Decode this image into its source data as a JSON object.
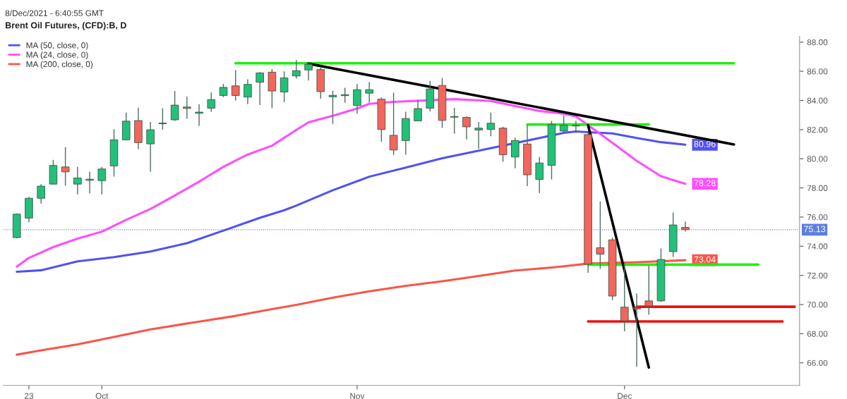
{
  "chart_data": {
    "type": "candlestick",
    "title": "Brent Oil Futures, (CFD):B, D",
    "annotations": [
      "8/Dec/2021 - 6:40:55 GMT"
    ],
    "categories": [
      null,
      "23",
      null,
      null,
      null,
      null,
      null,
      "Oct",
      null,
      null,
      null,
      null,
      null,
      null,
      null,
      null,
      null,
      null,
      null,
      null,
      null,
      null,
      null,
      null,
      null,
      null,
      null,
      null,
      "Nov",
      null,
      null,
      null,
      null,
      null,
      null,
      null,
      null,
      null,
      null,
      null,
      null,
      null,
      null,
      null,
      null,
      null,
      null,
      null,
      null,
      null,
      "Dec",
      null,
      null,
      null,
      null,
      null,
      null,
      null,
      null,
      null,
      null,
      null,
      null,
      null,
      null
    ],
    "ohlc": [
      [
        74.59,
        76.25,
        74.55,
        76.2
      ],
      [
        75.93,
        77.39,
        75.65,
        77.29
      ],
      [
        77.29,
        78.26,
        76.93,
        78.12
      ],
      [
        78.26,
        79.93,
        78.26,
        79.54
      ],
      [
        79.44,
        80.8,
        78.15,
        79.1
      ],
      [
        78.26,
        79.44,
        77.56,
        78.68
      ],
      [
        78.52,
        79.12,
        77.63,
        78.6
      ],
      [
        78.5,
        79.44,
        77.56,
        79.3
      ],
      [
        79.51,
        82.03,
        78.78,
        81.3
      ],
      [
        81.3,
        83.16,
        81.25,
        82.58
      ],
      [
        82.62,
        83.5,
        80.66,
        81.11
      ],
      [
        81.02,
        82.53,
        79.12,
        81.99
      ],
      [
        82.4,
        83.47,
        81.99,
        82.45
      ],
      [
        82.67,
        84.65,
        82.6,
        83.68
      ],
      [
        83.55,
        84.27,
        82.74,
        83.45
      ],
      [
        83.12,
        83.75,
        82.26,
        83.2
      ],
      [
        83.47,
        84.55,
        83.23,
        84.06
      ],
      [
        84.34,
        85.14,
        84.23,
        84.9
      ],
      [
        85.0,
        86.08,
        83.99,
        84.34
      ],
      [
        84.23,
        85.45,
        83.75,
        85.1
      ],
      [
        85.25,
        85.95,
        83.68,
        85.89
      ],
      [
        85.94,
        86.15,
        83.47,
        84.65
      ],
      [
        84.58,
        85.99,
        83.88,
        85.55
      ],
      [
        85.68,
        86.77,
        85.5,
        86.04
      ],
      [
        86.09,
        86.55,
        85.36,
        86.48
      ],
      [
        86.12,
        86.25,
        84.12,
        84.61
      ],
      [
        84.25,
        84.66,
        82.39,
        84.35
      ],
      [
        84.33,
        84.87,
        83.85,
        84.4
      ],
      [
        83.65,
        85.14,
        83.09,
        84.74
      ],
      [
        84.5,
        85.27,
        83.85,
        84.74
      ],
      [
        84.09,
        84.2,
        81.17,
        82.01
      ],
      [
        81.61,
        84.53,
        80.25,
        80.6
      ],
      [
        81.25,
        83.23,
        80.28,
        82.76
      ],
      [
        82.6,
        84.04,
        82.6,
        83.44
      ],
      [
        83.47,
        85.34,
        83.25,
        84.79
      ],
      [
        85.03,
        85.55,
        82.11,
        82.63
      ],
      [
        82.85,
        83.49,
        81.71,
        82.9
      ],
      [
        82.84,
        82.9,
        81.33,
        82.19
      ],
      [
        81.97,
        82.52,
        80.69,
        82.1
      ],
      [
        82.01,
        83.17,
        81.54,
        82.44
      ],
      [
        82.1,
        82.2,
        79.79,
        80.28
      ],
      [
        80.12,
        81.45,
        79.34,
        81.25
      ],
      [
        81.01,
        82.3,
        78.12,
        78.9
      ],
      [
        78.58,
        80.12,
        77.64,
        79.71
      ],
      [
        79.55,
        82.6,
        78.58,
        82.34
      ],
      [
        81.9,
        82.99,
        81.85,
        82.31
      ],
      [
        82.25,
        82.6,
        81.77,
        82.28
      ],
      [
        81.66,
        81.8,
        72.17,
        72.77
      ],
      [
        73.9,
        77.07,
        72.44,
        73.46
      ],
      [
        74.44,
        74.6,
        70.3,
        70.58
      ],
      [
        69.82,
        72.87,
        68.16,
        68.88
      ],
      [
        69.78,
        70.76,
        65.73,
        69.7
      ],
      [
        70.25,
        72.66,
        69.3,
        69.9
      ],
      [
        70.25,
        73.84,
        70.2,
        73.09
      ],
      [
        73.63,
        76.31,
        73.26,
        75.46
      ],
      [
        75.29,
        75.69,
        75.01,
        75.14
      ],
      null,
      null,
      null,
      null,
      null,
      null,
      null,
      null,
      null
    ],
    "colors": [
      "#22c17a",
      "#22c17a",
      "#22c17a",
      "#22c17a",
      "#f4665c",
      "#22c17a",
      "#22c17a",
      "#22c17a",
      "#22c17a",
      "#22c17a",
      "#f4665c",
      "#22c17a",
      "#22c17a",
      "#22c17a",
      "#f4665c",
      "#22c17a",
      "#22c17a",
      "#22c17a",
      "#f4665c",
      "#22c17a",
      "#22c17a",
      "#f4665c",
      "#22c17a",
      "#22c17a",
      "#22c17a",
      "#f4665c",
      "#22c17a",
      "#22c17a",
      "#22c17a",
      "#22c17a",
      "#f4665c",
      "#f4665c",
      "#22c17a",
      "#22c17a",
      "#22c17a",
      "#f4665c",
      "#22c17a",
      "#f4665c",
      "#22c17a",
      "#22c17a",
      "#f4665c",
      "#22c17a",
      "#f4665c",
      "#22c17a",
      "#22c17a",
      "#22c17a",
      "#22c17a",
      "#f4665c",
      "#f4665c",
      "#f4665c",
      "#f4665c",
      "#f4665c",
      "#f4665c",
      "#22c17a",
      "#22c17a",
      "#f4665c",
      null,
      null,
      null,
      null,
      null,
      null,
      null,
      null,
      null
    ],
    "series": [
      {
        "name": "MA (50, close, 0)",
        "type": "line",
        "color": "#5252f0",
        "values": [
          72.25,
          null,
          72.35,
          null,
          null,
          72.96,
          null,
          null,
          73.25,
          null,
          null,
          73.64,
          null,
          null,
          74.21,
          null,
          null,
          75.07,
          null,
          null,
          75.95,
          null,
          76.47,
          76.79,
          null,
          null,
          77.84,
          null,
          null,
          78.77,
          null,
          null,
          79.39,
          null,
          null,
          80.03,
          null,
          null,
          80.55,
          null,
          null,
          null,
          null,
          81.42,
          null,
          81.77,
          81.87,
          81.82,
          null,
          81.74,
          null,
          81.42,
          null,
          81.14,
          null,
          80.96,
          null,
          null,
          null,
          null,
          null,
          null,
          null,
          null,
          null
        ],
        "value_labels": [
          null,
          null,
          null,
          null,
          null,
          null,
          null,
          null,
          null,
          null,
          null,
          null,
          null,
          null,
          null,
          null,
          null,
          null,
          null,
          null,
          null,
          null,
          null,
          null,
          null,
          null,
          null,
          null,
          null,
          null,
          null,
          null,
          null,
          null,
          null,
          null,
          null,
          null,
          null,
          null,
          null,
          null,
          null,
          null,
          null,
          null,
          null,
          null,
          null,
          null,
          null,
          null,
          null,
          null,
          null,
          "80.96",
          null,
          null,
          null,
          null,
          null,
          null,
          null,
          null,
          null
        ]
      },
      {
        "name": "MA (24, close, 0)",
        "type": "line",
        "color": "#ff4dff",
        "values": [
          72.6,
          73.2,
          null,
          73.94,
          null,
          74.52,
          null,
          75.0,
          null,
          75.81,
          null,
          76.56,
          null,
          77.48,
          null,
          78.43,
          null,
          79.45,
          null,
          80.29,
          null,
          80.9,
          null,
          81.98,
          82.5,
          null,
          82.95,
          null,
          83.44,
          83.77,
          null,
          83.9,
          null,
          null,
          null,
          null,
          84.09,
          null,
          null,
          83.96,
          null,
          83.61,
          null,
          83.28,
          null,
          83.09,
          82.9,
          82.31,
          null,
          81.1,
          null,
          79.85,
          null,
          78.8,
          null,
          78.28,
          null,
          null,
          null,
          null,
          null,
          null,
          null,
          null,
          null
        ],
        "value_labels": [
          null,
          null,
          null,
          null,
          null,
          null,
          null,
          null,
          null,
          null,
          null,
          null,
          null,
          null,
          null,
          null,
          null,
          null,
          null,
          null,
          null,
          null,
          null,
          null,
          null,
          null,
          null,
          null,
          null,
          null,
          null,
          null,
          null,
          null,
          null,
          null,
          null,
          null,
          null,
          null,
          null,
          null,
          null,
          null,
          null,
          null,
          null,
          null,
          null,
          null,
          null,
          null,
          null,
          null,
          null,
          "78.28",
          null,
          null,
          null,
          null,
          null,
          null,
          null,
          null,
          null
        ]
      },
      {
        "name": "MA (200, close, 0)",
        "type": "line",
        "color": "#f8564a",
        "values": [
          66.56,
          null,
          66.86,
          null,
          null,
          67.27,
          null,
          null,
          67.78,
          null,
          null,
          68.3,
          null,
          null,
          null,
          68.83,
          null,
          null,
          69.22,
          null,
          null,
          69.69,
          null,
          69.98,
          null,
          null,
          70.47,
          null,
          null,
          70.91,
          null,
          null,
          71.28,
          null,
          null,
          71.6,
          null,
          null,
          71.96,
          null,
          null,
          72.33,
          null,
          null,
          72.54,
          72.62,
          null,
          72.81,
          null,
          null,
          null,
          72.9,
          null,
          null,
          null,
          73.04,
          null,
          null,
          null,
          null,
          null,
          null,
          null,
          null,
          null
        ],
        "value_labels": [
          null,
          null,
          null,
          null,
          null,
          null,
          null,
          null,
          null,
          null,
          null,
          null,
          null,
          null,
          null,
          null,
          null,
          null,
          null,
          null,
          null,
          null,
          null,
          null,
          null,
          null,
          null,
          null,
          null,
          null,
          null,
          null,
          null,
          null,
          null,
          null,
          null,
          null,
          null,
          null,
          null,
          null,
          null,
          null,
          null,
          null,
          null,
          null,
          null,
          null,
          null,
          null,
          null,
          null,
          null,
          "73.04",
          null,
          null,
          null,
          null,
          null,
          null,
          null,
          null,
          null
        ]
      },
      {
        "type": "line",
        "color": "#22ee11",
        "values": [
          null,
          null,
          null,
          null,
          null,
          null,
          null,
          null,
          null,
          null,
          null,
          null,
          null,
          null,
          null,
          null,
          null,
          null,
          86.55,
          null,
          null,
          null,
          null,
          null,
          null,
          null,
          null,
          null,
          null,
          null,
          null,
          null,
          null,
          null,
          null,
          null,
          null,
          null,
          null,
          null,
          null,
          null,
          null,
          null,
          null,
          null,
          null,
          null,
          null,
          null,
          null,
          null,
          null,
          null,
          null,
          null,
          null,
          null,
          null,
          86.55,
          null,
          null,
          null,
          null,
          null
        ]
      },
      {
        "type": "line",
        "color": "#22ee11",
        "values": [
          null,
          null,
          null,
          null,
          null,
          null,
          null,
          null,
          null,
          null,
          null,
          null,
          null,
          null,
          null,
          null,
          null,
          null,
          null,
          null,
          null,
          null,
          null,
          null,
          null,
          null,
          null,
          null,
          null,
          null,
          null,
          null,
          null,
          null,
          null,
          null,
          null,
          null,
          null,
          null,
          null,
          null,
          82.35,
          null,
          null,
          null,
          null,
          null,
          null,
          null,
          null,
          null,
          82.35,
          null,
          null,
          null,
          null,
          null,
          null,
          null,
          null,
          null,
          null,
          null,
          null
        ]
      },
      {
        "type": "line",
        "color": "#22ee11",
        "values": [
          null,
          null,
          null,
          null,
          null,
          null,
          null,
          null,
          null,
          null,
          null,
          null,
          null,
          null,
          null,
          null,
          null,
          null,
          null,
          null,
          null,
          null,
          null,
          null,
          null,
          null,
          null,
          null,
          null,
          null,
          null,
          null,
          null,
          null,
          null,
          null,
          null,
          null,
          null,
          null,
          null,
          null,
          null,
          null,
          null,
          null,
          null,
          72.74,
          null,
          null,
          null,
          null,
          null,
          null,
          null,
          null,
          null,
          null,
          null,
          null,
          null,
          72.74,
          null,
          null,
          null
        ]
      },
      {
        "type": "line",
        "color": "#ee1111",
        "values": [
          null,
          null,
          null,
          null,
          null,
          null,
          null,
          null,
          null,
          null,
          null,
          null,
          null,
          null,
          null,
          null,
          null,
          null,
          null,
          null,
          null,
          null,
          null,
          null,
          null,
          null,
          null,
          null,
          null,
          null,
          null,
          null,
          null,
          null,
          null,
          null,
          null,
          null,
          null,
          null,
          null,
          null,
          null,
          null,
          null,
          null,
          null,
          null,
          null,
          null,
          null,
          69.85,
          null,
          null,
          null,
          null,
          null,
          null,
          null,
          null,
          null,
          null,
          null,
          null,
          69.85
        ]
      },
      {
        "type": "line",
        "color": "#ee1111",
        "values": [
          null,
          null,
          null,
          null,
          null,
          null,
          null,
          null,
          null,
          null,
          null,
          null,
          null,
          null,
          null,
          null,
          null,
          null,
          null,
          null,
          null,
          null,
          null,
          null,
          null,
          null,
          null,
          null,
          null,
          null,
          null,
          null,
          null,
          null,
          null,
          null,
          null,
          null,
          null,
          null,
          null,
          null,
          null,
          null,
          null,
          null,
          null,
          68.84,
          null,
          null,
          null,
          null,
          null,
          null,
          null,
          null,
          null,
          null,
          null,
          null,
          null,
          null,
          null,
          68.84,
          null
        ]
      },
      {
        "type": "line",
        "color": "#000000",
        "values": [
          null,
          null,
          null,
          null,
          null,
          null,
          null,
          null,
          null,
          null,
          null,
          null,
          null,
          null,
          null,
          null,
          null,
          null,
          null,
          null,
          null,
          null,
          null,
          null,
          86.52,
          null,
          null,
          null,
          null,
          null,
          null,
          null,
          null,
          null,
          null,
          null,
          null,
          null,
          null,
          null,
          null,
          null,
          null,
          null,
          null,
          null,
          null,
          null,
          null,
          null,
          null,
          null,
          null,
          null,
          null,
          null,
          null,
          null,
          null,
          80.98,
          null,
          null,
          null,
          null,
          null
        ]
      },
      {
        "type": "line",
        "color": "#000000",
        "values": [
          null,
          null,
          null,
          null,
          null,
          null,
          null,
          null,
          null,
          null,
          null,
          null,
          null,
          null,
          null,
          null,
          null,
          null,
          null,
          null,
          null,
          null,
          null,
          null,
          null,
          null,
          null,
          null,
          null,
          null,
          null,
          null,
          null,
          null,
          null,
          null,
          null,
          null,
          null,
          null,
          null,
          null,
          null,
          null,
          null,
          null,
          null,
          82.31,
          null,
          null,
          null,
          null,
          65.68,
          null,
          null,
          null,
          null,
          null,
          null,
          null,
          null,
          null,
          null,
          null,
          null
        ]
      }
    ],
    "ref_lines": [
      {
        "axis": "y",
        "value": 75.13,
        "label": "75.13",
        "color": "#5b7fe0",
        "line_style": "dotted"
      }
    ],
    "ylim": [
      64.45,
      88.4
    ],
    "yticks": [
      {
        "value": 66,
        "label": "66.00"
      },
      {
        "value": 68,
        "label": "68.00"
      },
      {
        "value": 70,
        "label": "70.00"
      },
      {
        "value": 72,
        "label": "72.00"
      },
      {
        "value": 74,
        "label": "74.00"
      },
      {
        "value": 76,
        "label": "76.00"
      },
      {
        "value": 78,
        "label": "78.00"
      },
      {
        "value": 80,
        "label": "80.00"
      },
      {
        "value": 82,
        "label": "82.00"
      },
      {
        "value": 84,
        "label": "84.00"
      },
      {
        "value": 86,
        "label": "86.00"
      },
      {
        "value": 88,
        "label": "88.00"
      }
    ],
    "legend": "top left",
    "grid": false
  }
}
